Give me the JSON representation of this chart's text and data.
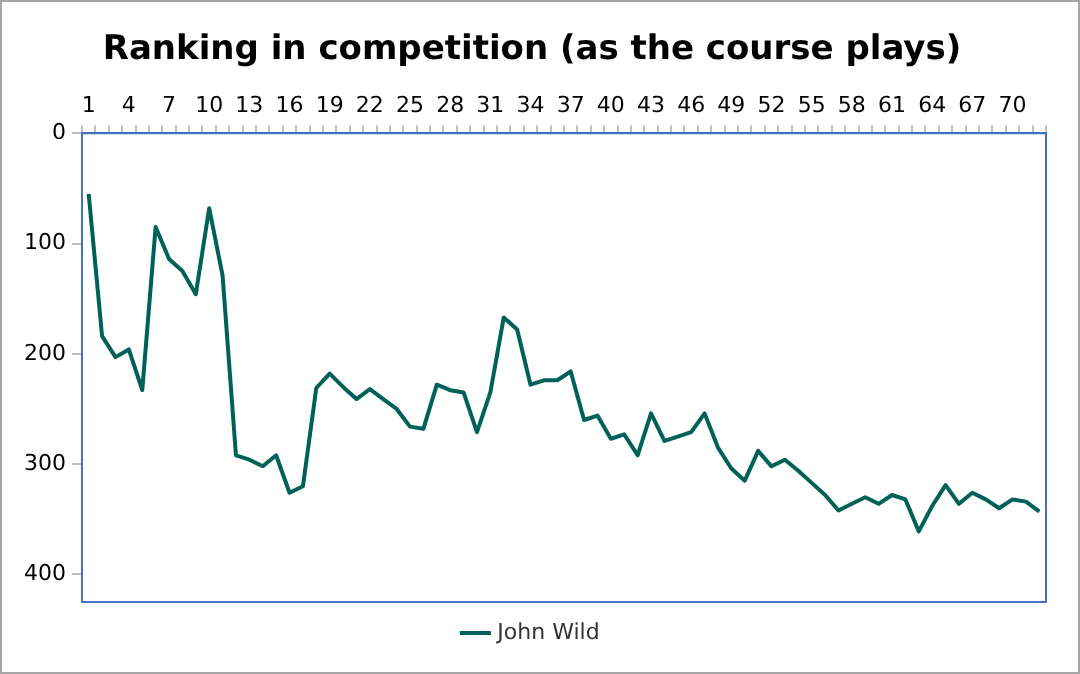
{
  "chart_data": {
    "type": "line",
    "title": "Ranking in competition (as the course plays)",
    "categories": [
      "1",
      null,
      null,
      "4",
      null,
      null,
      "7",
      null,
      null,
      "10",
      null,
      null,
      "13",
      null,
      null,
      "16",
      null,
      null,
      "19",
      null,
      null,
      "22",
      null,
      null,
      "25",
      null,
      null,
      "28",
      null,
      null,
      "31",
      null,
      null,
      "34",
      null,
      null,
      "37",
      null,
      null,
      "40",
      null,
      null,
      "43",
      null,
      null,
      "46",
      null,
      null,
      "49",
      null,
      null,
      "52",
      null,
      null,
      "55",
      null,
      null,
      "58",
      null,
      null,
      "61",
      null,
      null,
      "64",
      null,
      null,
      "67",
      null,
      null,
      "70",
      null,
      null
    ],
    "series": [
      {
        "name": "John Wild",
        "color": "#006158",
        "values": [
          55,
          184,
          203,
          196,
          233,
          85,
          114,
          125,
          146,
          68,
          129,
          292,
          296,
          302,
          292,
          326,
          320,
          231,
          218,
          230,
          241,
          232,
          241,
          250,
          266,
          268,
          228,
          233,
          235,
          271,
          235,
          167,
          178,
          228,
          224,
          224,
          216,
          260,
          256,
          277,
          273,
          292,
          254,
          279,
          275,
          271,
          254,
          285,
          304,
          315,
          288,
          302,
          296,
          306,
          317,
          328,
          342,
          336,
          330,
          336,
          328,
          332,
          361,
          338,
          319,
          336,
          326,
          332,
          340,
          332,
          334,
          343
        ]
      }
    ],
    "ylim": [
      425,
      0
    ],
    "yticks": [
      0,
      100,
      200,
      300,
      400
    ],
    "grid": false,
    "legend": "bottom",
    "marker": "none",
    "line_style": "solid"
  }
}
